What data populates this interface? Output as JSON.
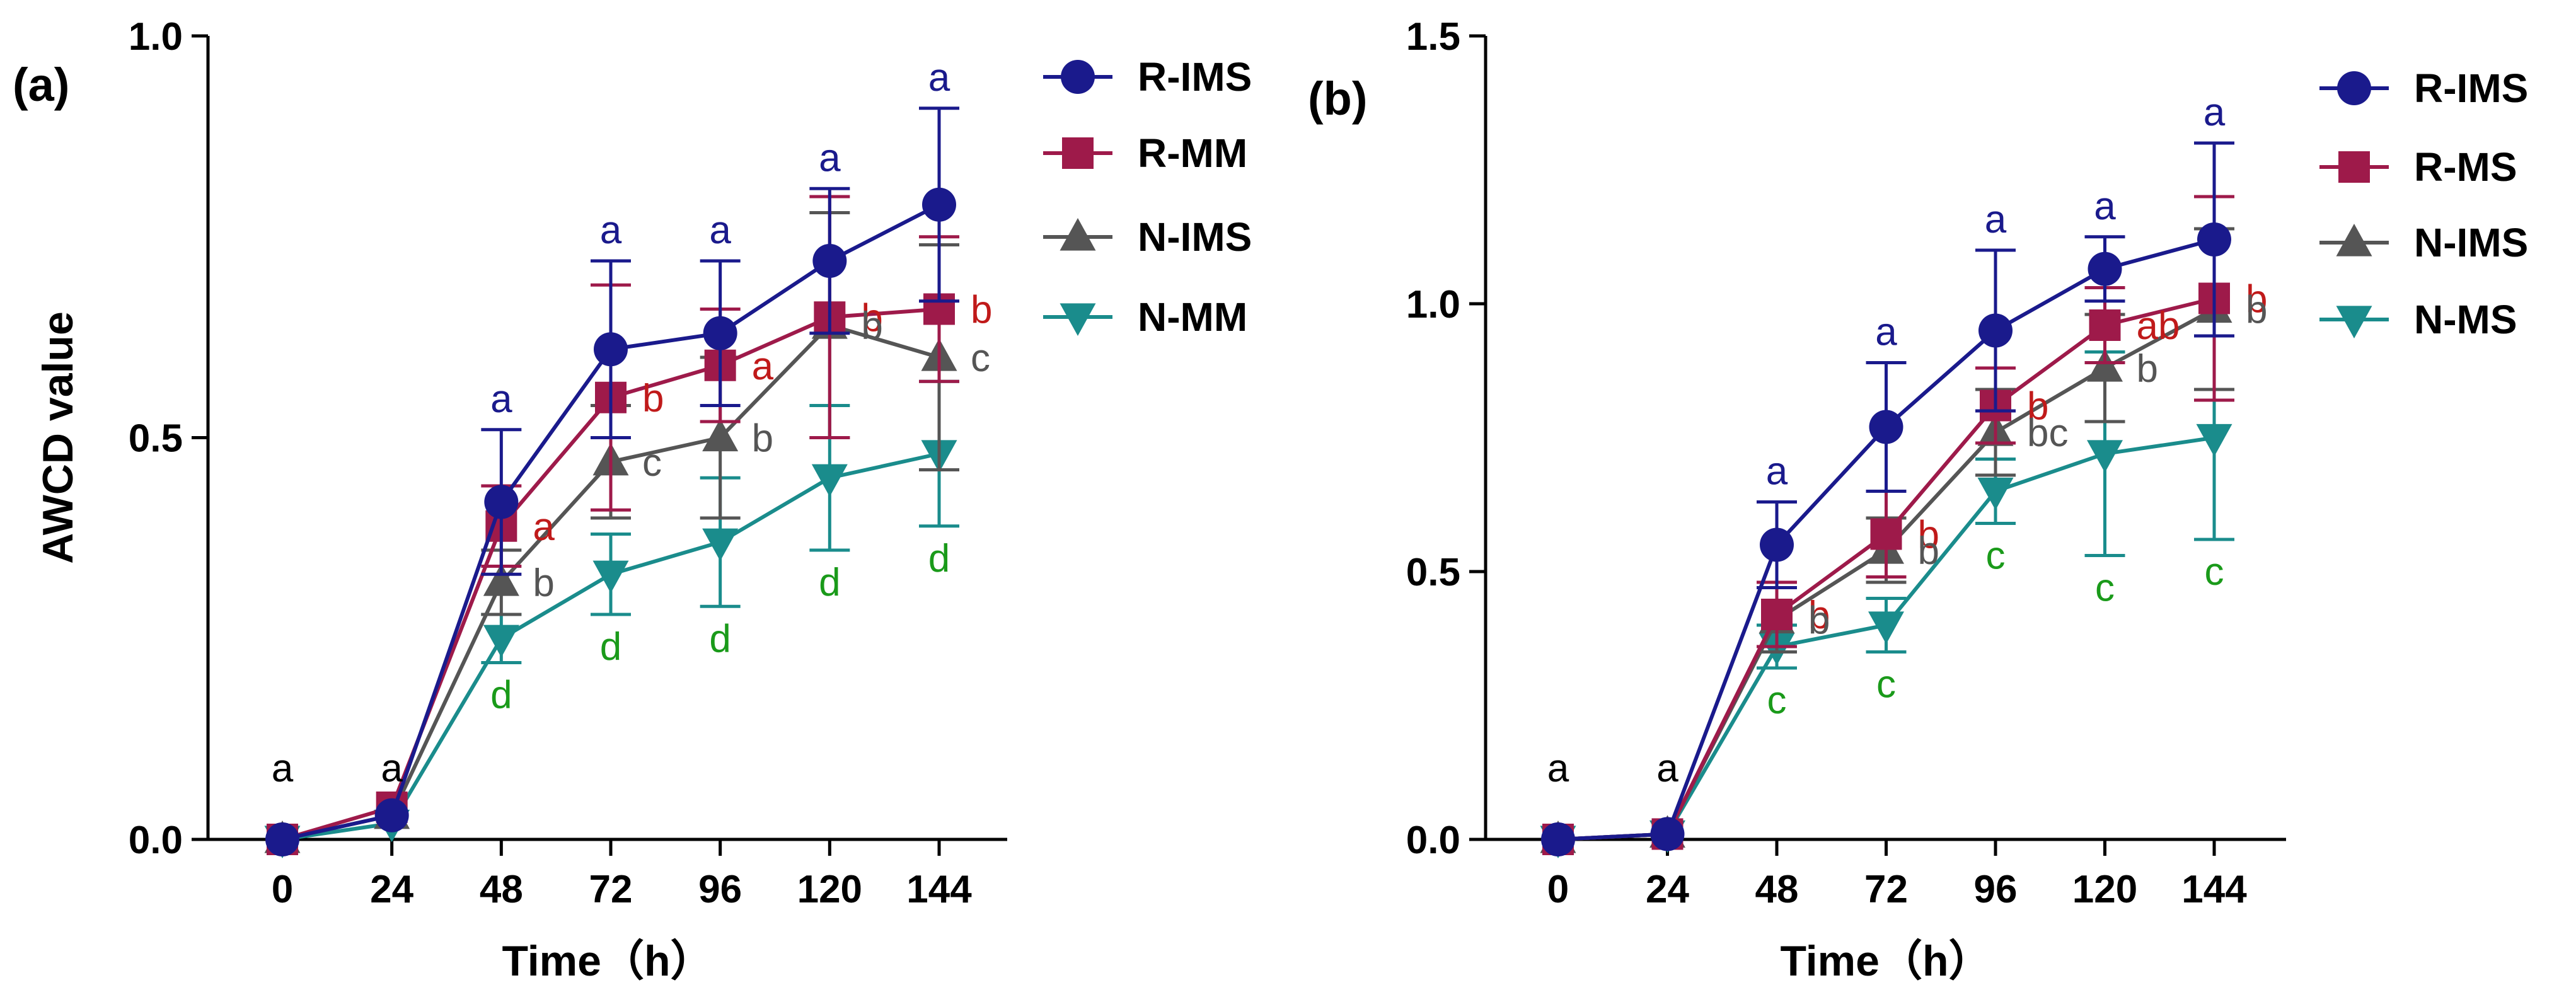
{
  "chart_data": [
    {
      "type": "line",
      "panel_label": "(a)",
      "xlabel": "Time（h）",
      "ylabel": "AWCD value",
      "x": [
        0,
        24,
        48,
        72,
        96,
        120,
        144
      ],
      "x_ticks": [
        "0",
        "24",
        "48",
        "72",
        "96",
        "120",
        "144"
      ],
      "ylim": [
        0,
        1.0
      ],
      "y_ticks": [
        "0.0",
        "0.5",
        "1.0"
      ],
      "y_tick_values": [
        0,
        0.5,
        1.0
      ],
      "legend_position": "right",
      "series": [
        {
          "name": "R-IMS",
          "color": "#1a1a8c",
          "marker": "circle",
          "values": [
            0.0,
            0.03,
            0.42,
            0.61,
            0.63,
            0.72,
            0.79
          ],
          "err": [
            0,
            0,
            0.09,
            0.11,
            0.09,
            0.09,
            0.12
          ],
          "letters": [
            "",
            "",
            "a",
            "a",
            "a",
            "a",
            "a"
          ]
        },
        {
          "name": "R-MM",
          "color": "#9e1a4a",
          "marker": "square",
          "values": [
            0.0,
            0.04,
            0.39,
            0.55,
            0.59,
            0.65,
            0.66
          ],
          "err": [
            0,
            0,
            0.05,
            0.14,
            0.07,
            0.15,
            0.09
          ],
          "letters": [
            "",
            "",
            "a",
            "b",
            "a",
            "b",
            "b"
          ]
        },
        {
          "name": "N-IMS",
          "color": "#555555",
          "marker": "triangle-up",
          "values": [
            0.0,
            0.03,
            0.32,
            0.47,
            0.5,
            0.64,
            0.6
          ],
          "err": [
            0,
            0,
            0.04,
            0.07,
            0.1,
            0.14,
            0.14
          ],
          "letters": [
            "",
            "",
            "b",
            "c",
            "b",
            "b",
            "c"
          ]
        },
        {
          "name": "N-MM",
          "color": "#1a8c8c",
          "marker": "triangle-down",
          "values": [
            0.0,
            0.02,
            0.25,
            0.33,
            0.37,
            0.45,
            0.48
          ],
          "err": [
            0,
            0,
            0.03,
            0.05,
            0.08,
            0.09,
            0.09
          ],
          "letters": [
            "",
            "",
            "d",
            "d",
            "d",
            "d",
            "d"
          ]
        }
      ],
      "annotations": [
        {
          "x": 0,
          "text": "a",
          "color": "#000000"
        },
        {
          "x": 24,
          "text": "a",
          "color": "#000000"
        }
      ],
      "letter_colors": {
        "R-IMS": "#1a1a8c",
        "R-MM": "#c01a1a",
        "N-IMS": "#555555",
        "N-MM": "#1a9a1a"
      }
    },
    {
      "type": "line",
      "panel_label": "(b)",
      "xlabel": "Time（h）",
      "ylabel": "",
      "x": [
        0,
        24,
        48,
        72,
        96,
        120,
        144
      ],
      "x_ticks": [
        "0",
        "24",
        "48",
        "72",
        "96",
        "120",
        "144"
      ],
      "ylim": [
        0,
        1.5
      ],
      "y_ticks": [
        "0.0",
        "0.5",
        "1.0",
        "1.5"
      ],
      "y_tick_values": [
        0,
        0.5,
        1.0,
        1.5
      ],
      "legend_position": "right",
      "series": [
        {
          "name": "R-IMS",
          "color": "#1a1a8c",
          "marker": "circle",
          "values": [
            0.0,
            0.01,
            0.55,
            0.77,
            0.95,
            1.065,
            1.12
          ],
          "err": [
            0,
            0,
            0.08,
            0.12,
            0.15,
            0.06,
            0.18
          ],
          "letters": [
            "",
            "",
            "a",
            "a",
            "a",
            "a",
            "a"
          ]
        },
        {
          "name": "R-MS",
          "color": "#9e1a4a",
          "marker": "square",
          "values": [
            0.0,
            0.01,
            0.42,
            0.57,
            0.81,
            0.96,
            1.01
          ],
          "err": [
            0,
            0,
            0.06,
            0.08,
            0.07,
            0.07,
            0.19
          ],
          "letters": [
            "",
            "",
            "b",
            "b",
            "b",
            "ab",
            "b"
          ]
        },
        {
          "name": "N-IMS",
          "color": "#555555",
          "marker": "triangle-up",
          "values": [
            0.0,
            0.01,
            0.41,
            0.54,
            0.76,
            0.88,
            0.99
          ],
          "err": [
            0,
            0,
            0.06,
            0.06,
            0.08,
            0.1,
            0.15
          ],
          "letters": [
            "",
            "",
            "b",
            "b",
            "bc",
            "b",
            "b"
          ]
        },
        {
          "name": "N-MS",
          "color": "#1a8c8c",
          "marker": "triangle-down",
          "values": [
            0.0,
            0.01,
            0.36,
            0.4,
            0.65,
            0.72,
            0.75
          ],
          "err": [
            0,
            0,
            0.04,
            0.05,
            0.06,
            0.19,
            0.19
          ],
          "letters": [
            "",
            "",
            "c",
            "c",
            "c",
            "c",
            "c"
          ]
        }
      ],
      "annotations": [
        {
          "x": 0,
          "text": "a",
          "color": "#000000"
        },
        {
          "x": 24,
          "text": "a",
          "color": "#000000"
        }
      ],
      "letter_colors": {
        "R-IMS": "#1a1a8c",
        "R-MS": "#c01a1a",
        "N-IMS": "#555555",
        "N-MS": "#1a9a1a"
      }
    }
  ]
}
